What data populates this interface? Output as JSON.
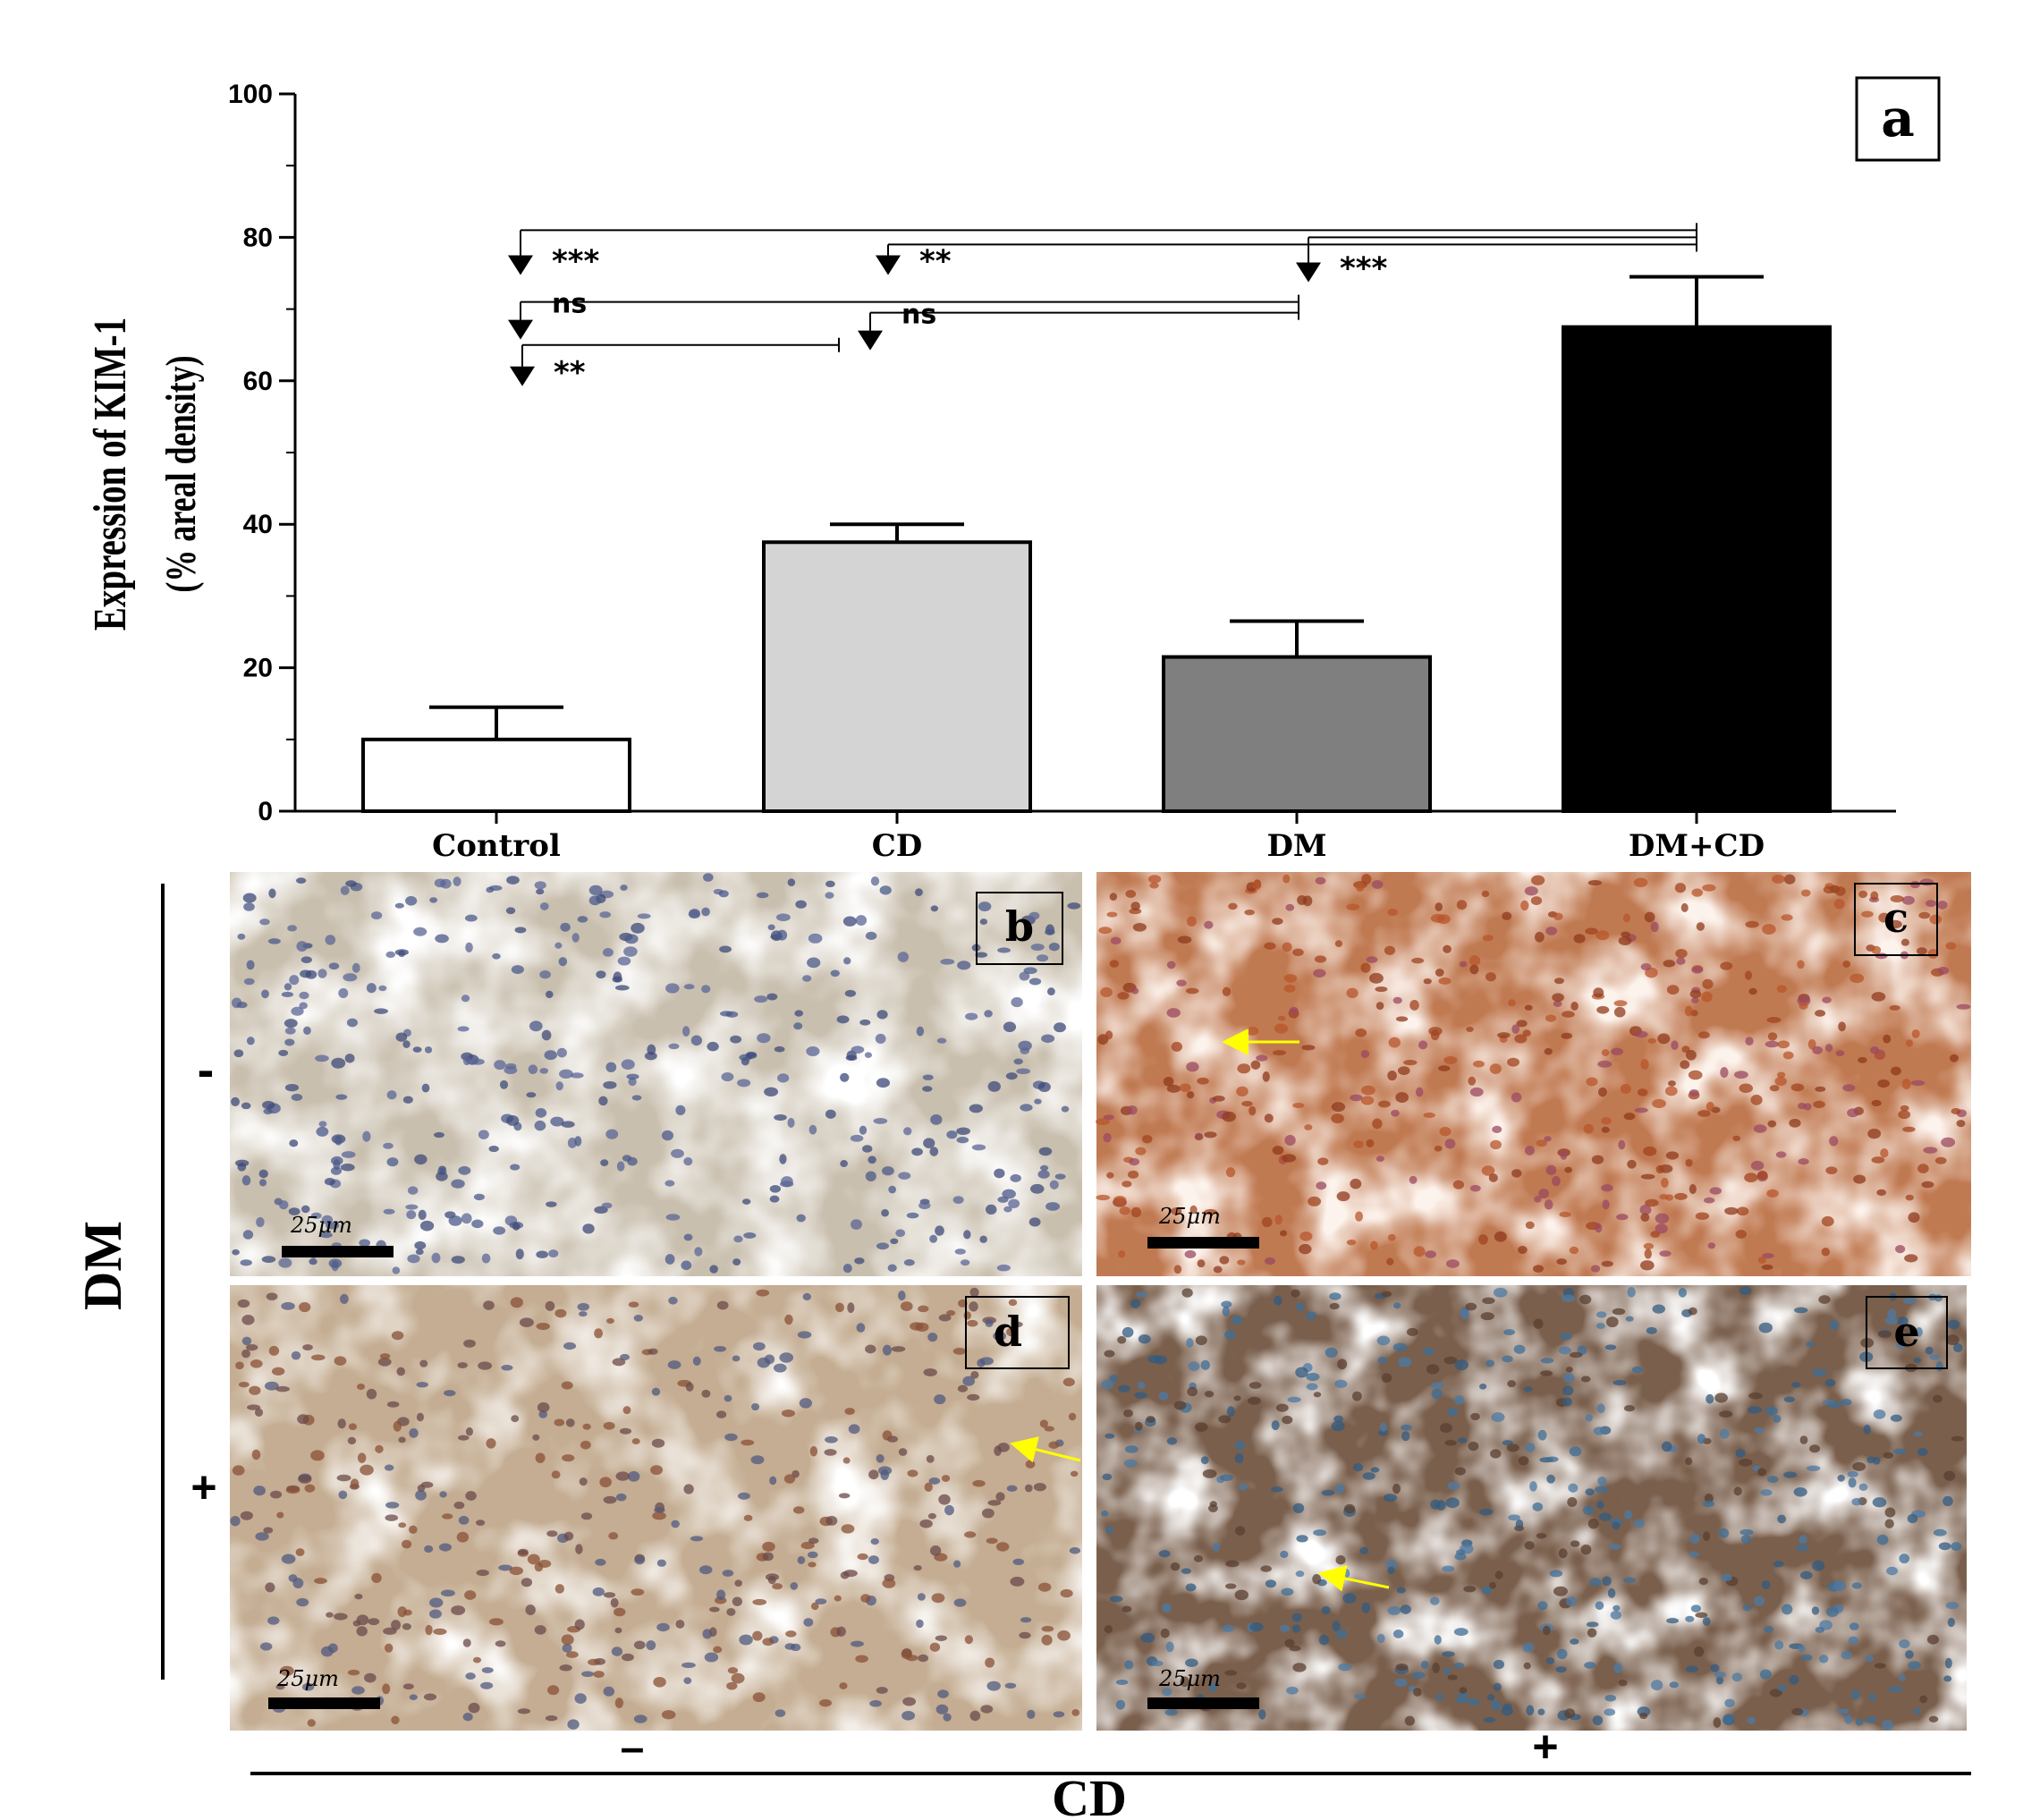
{
  "chart_data": {
    "type": "bar",
    "panel_label": "a",
    "ylabel_line1": "Expression of KIM-1",
    "ylabel_line2": "(% areal density)",
    "xlabel": "",
    "ylim": [
      0,
      100
    ],
    "yticks": [
      "0",
      "20",
      "40",
      "60",
      "80",
      "100"
    ],
    "categories": [
      "Control",
      "CD",
      "DM",
      "DM+CD"
    ],
    "values": [
      10,
      37.5,
      21.5,
      67.5
    ],
    "errors": [
      4.5,
      2.5,
      5,
      7
    ],
    "bar_colors": [
      "#ffffff",
      "#d4d4d4",
      "#7f7f7f",
      "#000000"
    ],
    "significance": [
      {
        "from": "DM+CD",
        "to": "Control",
        "label": "***"
      },
      {
        "from": "DM+CD",
        "to": "CD",
        "label": "**"
      },
      {
        "from": "DM+CD",
        "to": "DM",
        "label": "***"
      },
      {
        "from": "DM",
        "to": "Control",
        "label": "ns"
      },
      {
        "from": "DM",
        "to": "CD",
        "label": "ns"
      },
      {
        "from": "CD",
        "to": "Control",
        "label": "**"
      }
    ]
  },
  "micrographs": [
    {
      "label": "b",
      "scale_bar": "25μm",
      "stain": "weak",
      "base_color": "#c9bfae"
    },
    {
      "label": "c",
      "scale_bar": "25μm",
      "stain": "strong",
      "base_color": "#c07a52"
    },
    {
      "label": "d",
      "scale_bar": "25μm",
      "stain": "moderate",
      "base_color": "#c4ad92"
    },
    {
      "label": "e",
      "scale_bar": "25μm",
      "stain": "intense",
      "base_color": "#7a5f4c"
    }
  ],
  "factor_row": {
    "name": "DM",
    "minus": "-",
    "plus": "+"
  },
  "factor_col": {
    "name": "CD",
    "minus": "–",
    "plus": "+"
  }
}
